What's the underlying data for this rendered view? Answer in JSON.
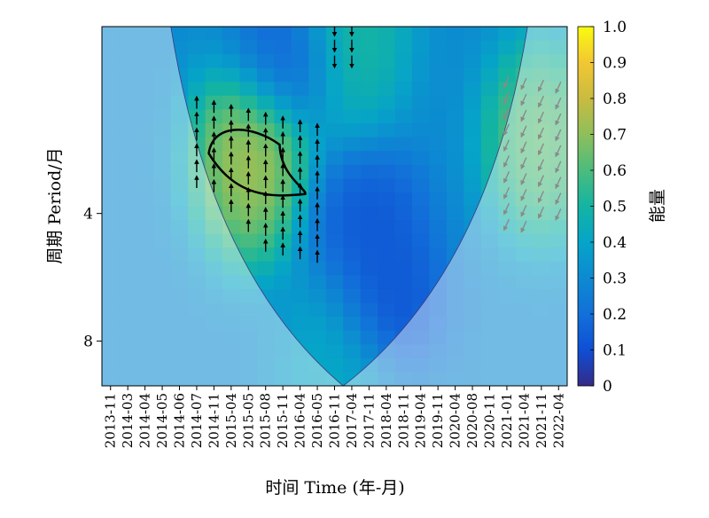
{
  "chart_data": {
    "type": "heatmap",
    "title": "",
    "xlabel": "时间 Time (年-月)",
    "ylabel": "周期 Period/月",
    "x_tick_labels": [
      "2013-11",
      "2014-03",
      "2014-04",
      "2014-05",
      "2014-06",
      "2014-07",
      "2014-11",
      "2015-04",
      "2015-05",
      "2015-08",
      "2015-11",
      "2016-04",
      "2016-05",
      "2016-11",
      "2017-04",
      "2017-11",
      "2018-04",
      "2018-11",
      "2019-04",
      "2019-11",
      "2020-04",
      "2020-08",
      "2020-11",
      "2021-01",
      "2021-04",
      "2021-11",
      "2022-04"
    ],
    "y_scale": "log2",
    "y_ticks": [
      4,
      8
    ],
    "y_range": [
      1.45,
      10.2
    ],
    "colorbar": {
      "label": "能量",
      "ticks": [
        "0",
        "0.1",
        "0.2",
        "0.3",
        "0.4",
        "0.5",
        "0.6",
        "0.7",
        "0.8",
        "0.9",
        "1.0"
      ],
      "range": [
        0,
        1.0
      ]
    },
    "cone_of_influence": "shaded outside a V-shaped region with apex at the bottom near 2016-11 / 2017-04",
    "significance_contour_region": {
      "x_range": [
        "2014-11",
        "2016-04"
      ],
      "period_range": [
        2.5,
        3.6
      ]
    },
    "high_power_regions": [
      {
        "center_time": "2015-05",
        "center_period": 3.0,
        "power": 0.82,
        "label": "main peak"
      },
      {
        "center_time": "2021-11",
        "center_period": 2.7,
        "power": 0.7,
        "label": "edge region (outside cone)"
      },
      {
        "center_time": "2017-04",
        "center_period": 1.5,
        "power": 0.55,
        "label": "top short period"
      },
      {
        "center_time": "2016-11",
        "center_period": 9.5,
        "power": 0.45,
        "label": "cone apex"
      }
    ],
    "low_power_regions": [
      {
        "center_time": "2018-04",
        "center_period": 6.5,
        "power": 0.08
      },
      {
        "center_time": "2017-11",
        "center_period": 4.2,
        "power": 0.1
      },
      {
        "center_time": "2015-11",
        "center_period": 1.7,
        "power": 0.12
      }
    ],
    "phase_arrows": "black arrows mostly pointing up within the significant region; grey arrows mostly pointing down on the right edge"
  }
}
